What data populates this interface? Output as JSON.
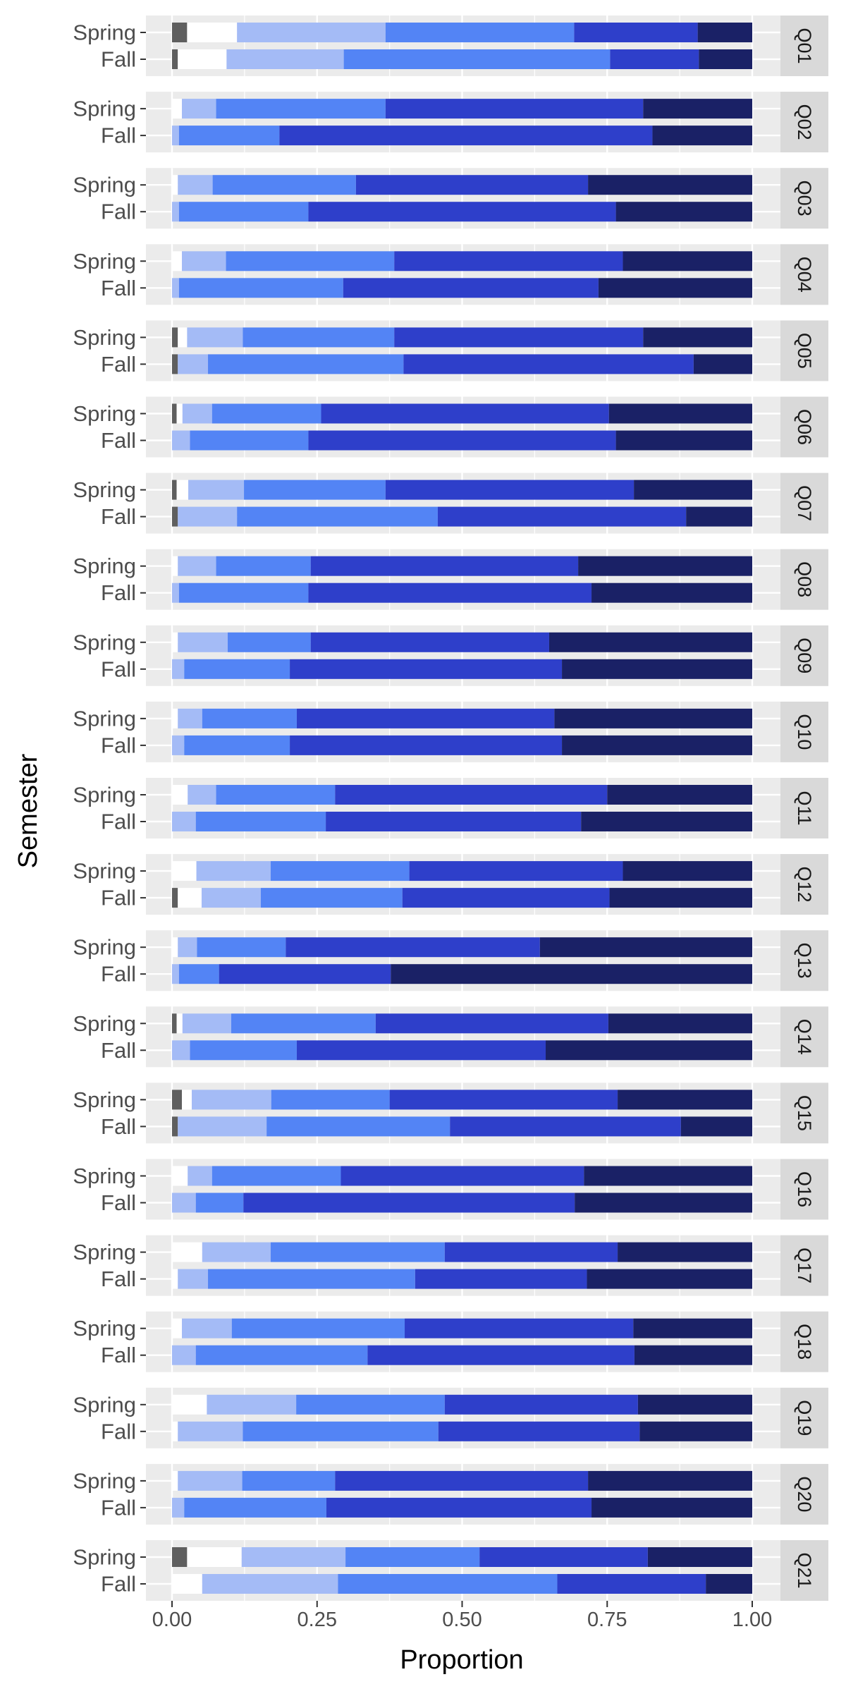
{
  "chart_data": {
    "type": "bar",
    "orientation": "horizontal",
    "stacked": true,
    "xlabel": "Proportion",
    "ylabel": "Semester",
    "xlim": [
      0,
      1
    ],
    "x_ticks": [
      "0.00",
      "0.25",
      "0.50",
      "0.75",
      "1.00"
    ],
    "x_tick_values": [
      0,
      0.25,
      0.5,
      0.75,
      1.0
    ],
    "grid": true,
    "legend": "none",
    "semesters": [
      "Spring",
      "Fall"
    ],
    "segment_colors": [
      "#5f5f5f",
      "#ffffff",
      "#a4bbf6",
      "#5384f5",
      "#2e3fca",
      "#1a2166"
    ],
    "facets": [
      {
        "label": "Q01",
        "rows": [
          {
            "semester": "Spring",
            "values": [
              0.026,
              0.086,
              0.256,
              0.325,
              0.213,
              0.094
            ]
          },
          {
            "semester": "Fall",
            "values": [
              0.01,
              0.084,
              0.202,
              0.459,
              0.153,
              0.092
            ]
          }
        ]
      },
      {
        "label": "Q02",
        "rows": [
          {
            "semester": "Spring",
            "values": [
              0.0,
              0.017,
              0.059,
              0.292,
              0.444,
              0.188
            ]
          },
          {
            "semester": "Fall",
            "values": [
              0.0,
              0.0,
              0.012,
              0.173,
              0.643,
              0.172
            ]
          }
        ]
      },
      {
        "label": "Q03",
        "rows": [
          {
            "semester": "Spring",
            "values": [
              0.0,
              0.01,
              0.06,
              0.247,
              0.4,
              0.283
            ]
          },
          {
            "semester": "Fall",
            "values": [
              0.0,
              0.0,
              0.012,
              0.223,
              0.53,
              0.235
            ]
          }
        ]
      },
      {
        "label": "Q04",
        "rows": [
          {
            "semester": "Spring",
            "values": [
              0.0,
              0.017,
              0.076,
              0.29,
              0.394,
              0.223
            ]
          },
          {
            "semester": "Fall",
            "values": [
              0.0,
              0.0,
              0.012,
              0.283,
              0.44,
              0.265
            ]
          }
        ]
      },
      {
        "label": "Q05",
        "rows": [
          {
            "semester": "Spring",
            "values": [
              0.01,
              0.016,
              0.096,
              0.261,
              0.429,
              0.188
            ]
          },
          {
            "semester": "Fall",
            "values": [
              0.01,
              0.0,
              0.052,
              0.337,
              0.5,
              0.101
            ]
          }
        ]
      },
      {
        "label": "Q06",
        "rows": [
          {
            "semester": "Spring",
            "values": [
              0.008,
              0.01,
              0.051,
              0.188,
              0.496,
              0.247
            ]
          },
          {
            "semester": "Fall",
            "values": [
              0.0,
              0.0,
              0.031,
              0.204,
              0.53,
              0.235
            ]
          }
        ]
      },
      {
        "label": "Q07",
        "rows": [
          {
            "semester": "Spring",
            "values": [
              0.008,
              0.02,
              0.096,
              0.244,
              0.428,
              0.204
            ]
          },
          {
            "semester": "Fall",
            "values": [
              0.01,
              0.0,
              0.102,
              0.346,
              0.428,
              0.114
            ]
          }
        ]
      },
      {
        "label": "Q08",
        "rows": [
          {
            "semester": "Spring",
            "values": [
              0.0,
              0.01,
              0.066,
              0.163,
              0.461,
              0.3
            ]
          },
          {
            "semester": "Fall",
            "values": [
              0.0,
              0.0,
              0.012,
              0.223,
              0.488,
              0.277
            ]
          }
        ]
      },
      {
        "label": "Q09",
        "rows": [
          {
            "semester": "Spring",
            "values": [
              0.0,
              0.01,
              0.086,
              0.143,
              0.411,
              0.35
            ]
          },
          {
            "semester": "Fall",
            "values": [
              0.0,
              0.0,
              0.021,
              0.182,
              0.469,
              0.328
            ]
          }
        ]
      },
      {
        "label": "Q10",
        "rows": [
          {
            "semester": "Spring",
            "values": [
              0.0,
              0.01,
              0.042,
              0.163,
              0.444,
              0.341
            ]
          },
          {
            "semester": "Fall",
            "values": [
              0.0,
              0.0,
              0.021,
              0.182,
              0.469,
              0.328
            ]
          }
        ]
      },
      {
        "label": "Q11",
        "rows": [
          {
            "semester": "Spring",
            "values": [
              0.0,
              0.027,
              0.049,
              0.205,
              0.469,
              0.25
            ]
          },
          {
            "semester": "Fall",
            "values": [
              0.0,
              0.0,
              0.041,
              0.224,
              0.44,
              0.295
            ]
          }
        ]
      },
      {
        "label": "Q12",
        "rows": [
          {
            "semester": "Spring",
            "values": [
              0.0,
              0.042,
              0.128,
              0.239,
              0.368,
              0.223
            ]
          },
          {
            "semester": "Fall",
            "values": [
              0.01,
              0.041,
              0.102,
              0.244,
              0.357,
              0.246
            ]
          }
        ]
      },
      {
        "label": "Q13",
        "rows": [
          {
            "semester": "Spring",
            "values": [
              0.0,
              0.01,
              0.033,
              0.153,
              0.438,
              0.366
            ]
          },
          {
            "semester": "Fall",
            "values": [
              0.0,
              0.0,
              0.012,
              0.069,
              0.296,
              0.623
            ]
          }
        ]
      },
      {
        "label": "Q14",
        "rows": [
          {
            "semester": "Spring",
            "values": [
              0.008,
              0.01,
              0.084,
              0.249,
              0.401,
              0.248
            ]
          },
          {
            "semester": "Fall",
            "values": [
              0.0,
              0.0,
              0.031,
              0.184,
              0.429,
              0.356
            ]
          }
        ]
      },
      {
        "label": "Q15",
        "rows": [
          {
            "semester": "Spring",
            "values": [
              0.017,
              0.017,
              0.137,
              0.204,
              0.393,
              0.232
            ]
          },
          {
            "semester": "Fall",
            "values": [
              0.01,
              0.0,
              0.153,
              0.316,
              0.398,
              0.123
            ]
          }
        ]
      },
      {
        "label": "Q16",
        "rows": [
          {
            "semester": "Spring",
            "values": [
              0.0,
              0.027,
              0.042,
              0.222,
              0.419,
              0.29
            ]
          },
          {
            "semester": "Fall",
            "values": [
              0.0,
              0.0,
              0.041,
              0.082,
              0.571,
              0.306
            ]
          }
        ]
      },
      {
        "label": "Q17",
        "rows": [
          {
            "semester": "Spring",
            "values": [
              0.0,
              0.052,
              0.118,
              0.3,
              0.298,
              0.232
            ]
          },
          {
            "semester": "Fall",
            "values": [
              0.0,
              0.01,
              0.052,
              0.357,
              0.296,
              0.285
            ]
          }
        ]
      },
      {
        "label": "Q18",
        "rows": [
          {
            "semester": "Spring",
            "values": [
              0.0,
              0.017,
              0.086,
              0.298,
              0.394,
              0.205
            ]
          },
          {
            "semester": "Fall",
            "values": [
              0.0,
              0.0,
              0.041,
              0.296,
              0.46,
              0.203
            ]
          }
        ]
      },
      {
        "label": "Q19",
        "rows": [
          {
            "semester": "Spring",
            "values": [
              0.0,
              0.06,
              0.154,
              0.256,
              0.333,
              0.197
            ]
          },
          {
            "semester": "Fall",
            "values": [
              0.0,
              0.01,
              0.112,
              0.337,
              0.347,
              0.194
            ]
          }
        ]
      },
      {
        "label": "Q20",
        "rows": [
          {
            "semester": "Spring",
            "values": [
              0.0,
              0.01,
              0.111,
              0.16,
              0.436,
              0.283
            ]
          },
          {
            "semester": "Fall",
            "values": [
              0.0,
              0.0,
              0.021,
              0.245,
              0.457,
              0.277
            ]
          }
        ]
      },
      {
        "label": "Q21",
        "rows": [
          {
            "semester": "Spring",
            "values": [
              0.026,
              0.094,
              0.179,
              0.231,
              0.29,
              0.18
            ]
          },
          {
            "semester": "Fall",
            "values": [
              0.0,
              0.052,
              0.234,
              0.378,
              0.256,
              0.08
            ]
          }
        ]
      }
    ]
  }
}
